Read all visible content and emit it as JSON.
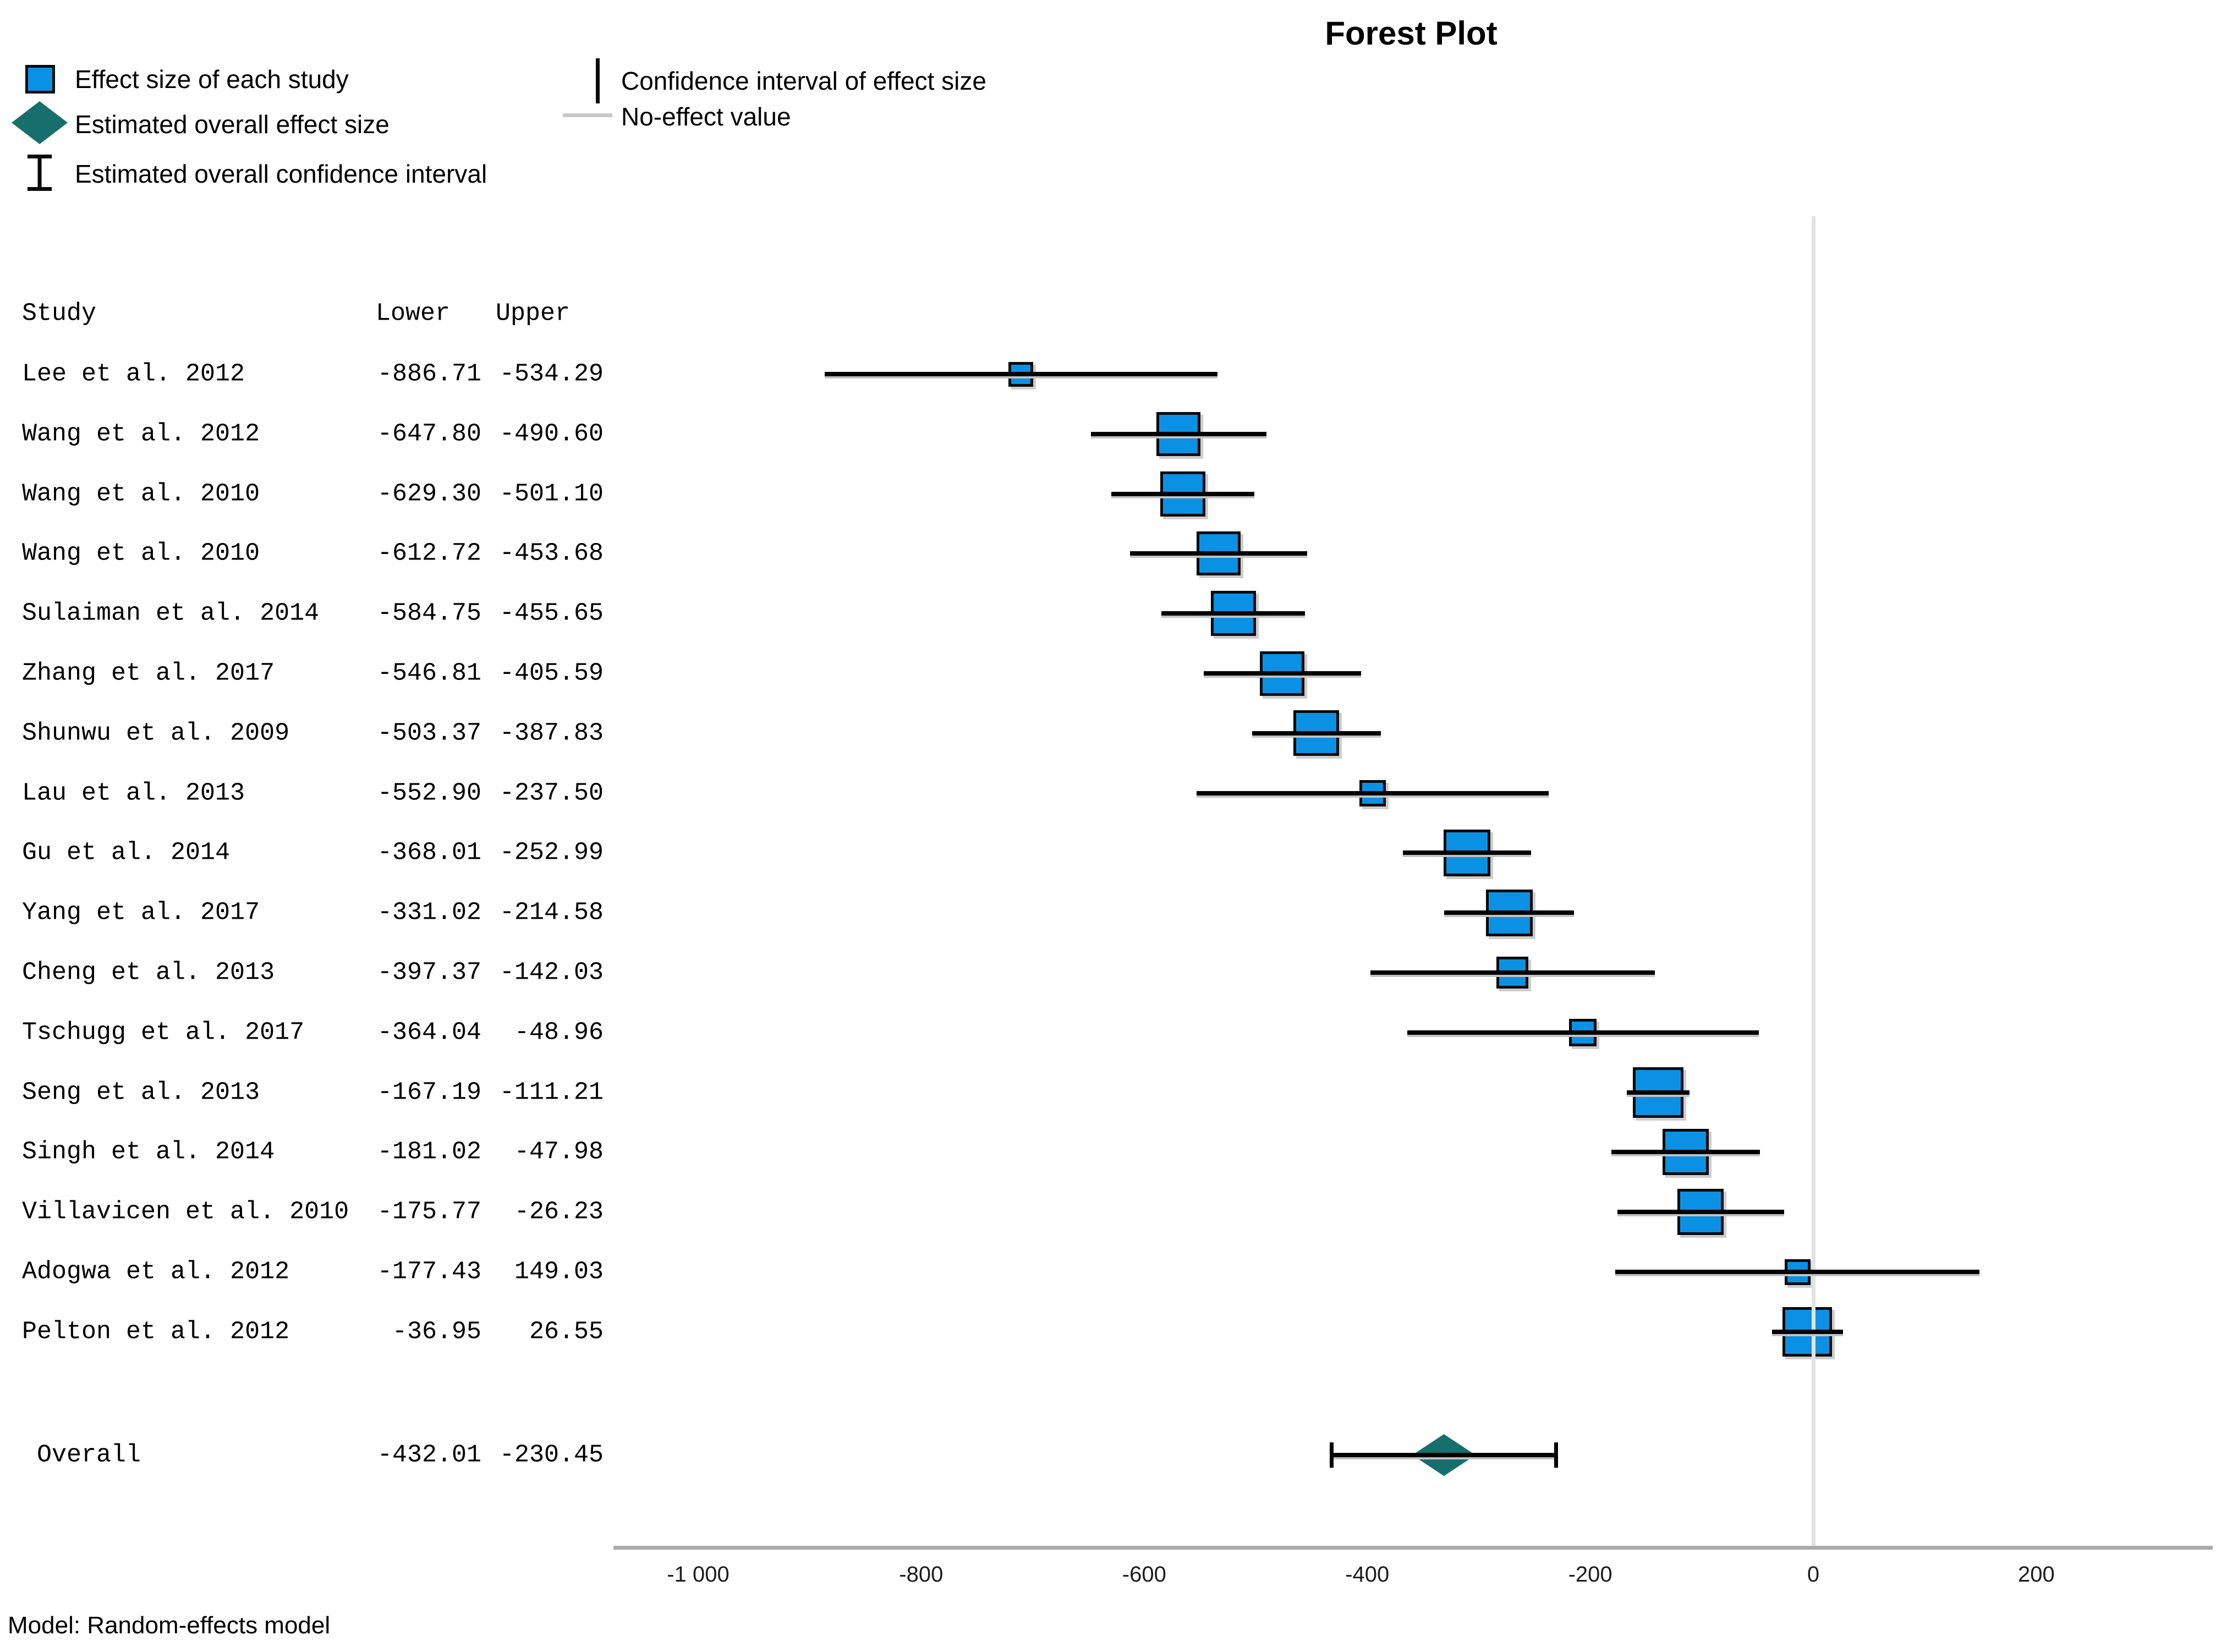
{
  "title": "Forest Plot",
  "legend": {
    "items": [
      {
        "icon": "effect-size-square-icon",
        "label": "Effect size of each study"
      },
      {
        "icon": "overall-effect-diamond-icon",
        "label": "Estimated overall effect size"
      },
      {
        "icon": "overall-ci-ibeam-icon",
        "label": "Estimated overall confidence interval"
      },
      {
        "icon": "ci-line-icon",
        "label": "Confidence interval of effect size"
      },
      {
        "icon": "no-effect-line-icon",
        "label": "No-effect value"
      }
    ]
  },
  "table": {
    "headers": {
      "study": "Study",
      "lower": "Lower",
      "upper": "Upper"
    }
  },
  "footer": {
    "model_note": "Model: Random-effects model"
  },
  "colors": {
    "effect_blue": "#0b91e3",
    "overall_teal": "#166f6c",
    "ci_black": "#020202",
    "axis_gray": "#ababab",
    "no_effect_gray": "#e2e2e2"
  },
  "chart_data": {
    "type": "forest",
    "title": "Forest Plot",
    "xlabel": "",
    "x_ticks": [
      {
        "value": -1000,
        "label": "-1 000"
      },
      {
        "value": -800,
        "label": "-800"
      },
      {
        "value": -600,
        "label": "-600"
      },
      {
        "value": -400,
        "label": "-400"
      },
      {
        "value": -200,
        "label": "-200"
      },
      {
        "value": 0,
        "label": "0"
      },
      {
        "value": 200,
        "label": "200"
      }
    ],
    "x_range": [
      -1080,
      360
    ],
    "no_effect_value": 0,
    "studies": [
      {
        "name": "Lee et al. 2012",
        "lower": -886.71,
        "upper": -534.29,
        "lower_label": "-886.71",
        "upper_label": "-534.29",
        "marker_px": 45
      },
      {
        "name": "Wang et al. 2012",
        "lower": -647.8,
        "upper": -490.6,
        "lower_label": "-647.80",
        "upper_label": "-490.60",
        "marker_px": 80
      },
      {
        "name": "Wang et al. 2010",
        "lower": -629.3,
        "upper": -501.1,
        "lower_label": "-629.30",
        "upper_label": "-501.10",
        "marker_px": 82
      },
      {
        "name": "Wang et al. 2010",
        "lower": -612.72,
        "upper": -453.68,
        "lower_label": "-612.72",
        "upper_label": "-453.68",
        "marker_px": 80
      },
      {
        "name": "Sulaiman et al. 2014",
        "lower": -584.75,
        "upper": -455.65,
        "lower_label": "-584.75",
        "upper_label": "-455.65",
        "marker_px": 82
      },
      {
        "name": "Zhang et al. 2017",
        "lower": -546.81,
        "upper": -405.59,
        "lower_label": "-546.81",
        "upper_label": "-405.59",
        "marker_px": 81
      },
      {
        "name": "Shunwu et al. 2009",
        "lower": -503.37,
        "upper": -387.83,
        "lower_label": "-503.37",
        "upper_label": "-387.83",
        "marker_px": 83
      },
      {
        "name": "Lau et al. 2013",
        "lower": -552.9,
        "upper": -237.5,
        "lower_label": "-552.90",
        "upper_label": "-237.50",
        "marker_px": 48
      },
      {
        "name": "Gu et al. 2014",
        "lower": -368.01,
        "upper": -252.99,
        "lower_label": "-368.01",
        "upper_label": "-252.99",
        "marker_px": 85
      },
      {
        "name": "Yang et al. 2017",
        "lower": -331.02,
        "upper": -214.58,
        "lower_label": "-331.02",
        "upper_label": "-214.58",
        "marker_px": 85
      },
      {
        "name": "Cheng et al. 2013",
        "lower": -397.37,
        "upper": -142.03,
        "lower_label": "-397.37",
        "upper_label": "-142.03",
        "marker_px": 58
      },
      {
        "name": "Tschugg et al. 2017",
        "lower": -364.04,
        "upper": -48.96,
        "lower_label": "-364.04",
        "upper_label": "-48.96",
        "marker_px": 50
      },
      {
        "name": "Seng et al. 2013",
        "lower": -167.19,
        "upper": -111.21,
        "lower_label": "-167.19",
        "upper_label": "-111.21",
        "marker_px": 92
      },
      {
        "name": "Singh et al. 2014",
        "lower": -181.02,
        "upper": -47.98,
        "lower_label": "-181.02",
        "upper_label": "-47.98",
        "marker_px": 84
      },
      {
        "name": "Villavicen et al. 2010",
        "lower": -175.77,
        "upper": -26.23,
        "lower_label": "-175.77",
        "upper_label": "-26.23",
        "marker_px": 84
      },
      {
        "name": "Adogwa et al. 2012",
        "lower": -177.43,
        "upper": 149.03,
        "lower_label": "-177.43",
        "upper_label": "149.03",
        "marker_px": 47
      },
      {
        "name": "Pelton et al. 2012",
        "lower": -36.95,
        "upper": 26.55,
        "lower_label": "-36.95",
        "upper_label": "26.55",
        "marker_px": 90
      }
    ],
    "overall": {
      "name": "Overall",
      "lower": -432.01,
      "upper": -230.45,
      "lower_label": "-432.01",
      "upper_label": "-230.45"
    }
  }
}
